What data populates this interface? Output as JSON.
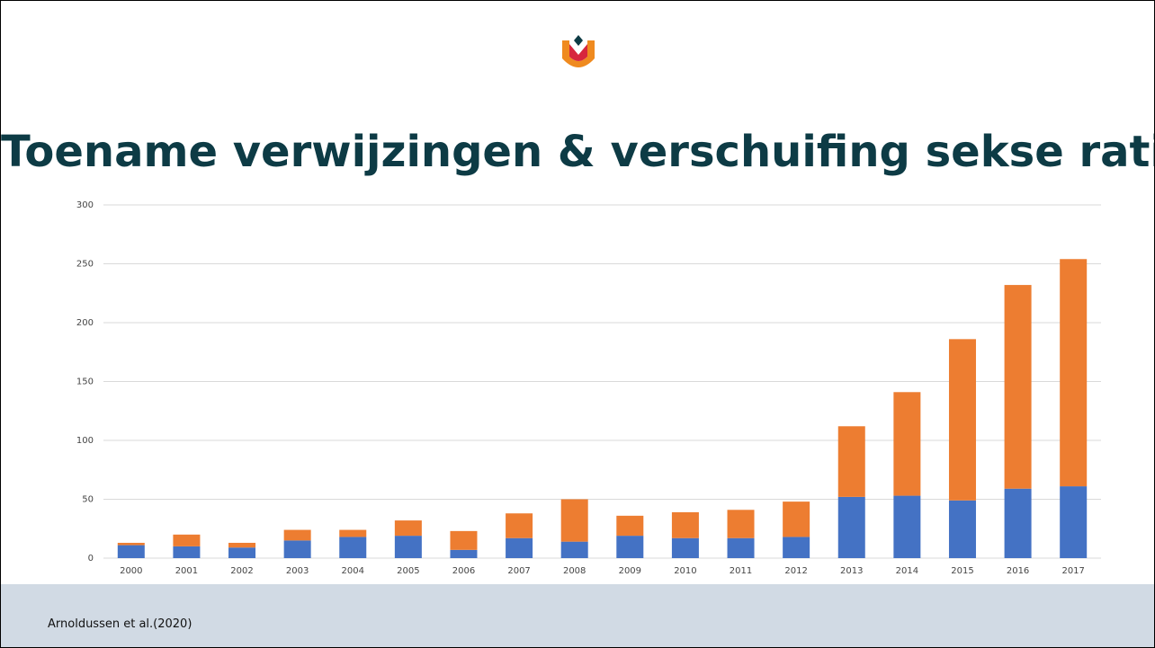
{
  "slide": {
    "title": "Toename verwijzingen & verschuifing sekse ratio",
    "footer": "Arnoldussen et al.(2020)"
  },
  "chart_data": {
    "type": "stacked_bar",
    "categories": [
      "2000",
      "2001",
      "2002",
      "2003",
      "2004",
      "2005",
      "2006",
      "2007",
      "2008",
      "2009",
      "2010",
      "2011",
      "2012",
      "2013",
      "2014",
      "2015",
      "2016",
      "2017"
    ],
    "series": [
      {
        "color": "#4472c4",
        "values": [
          11,
          10,
          9,
          15,
          18,
          19,
          7,
          17,
          14,
          19,
          17,
          17,
          18,
          52,
          53,
          49,
          59,
          61
        ]
      },
      {
        "color": "#ed7d31",
        "values": [
          2,
          10,
          4,
          9,
          6,
          13,
          16,
          21,
          36,
          17,
          22,
          24,
          30,
          60,
          88,
          137,
          173,
          193
        ]
      }
    ],
    "ylim": [
      0,
      300
    ],
    "yticks": [
      0,
      50,
      100,
      150,
      200,
      250,
      300
    ],
    "grid": true
  }
}
